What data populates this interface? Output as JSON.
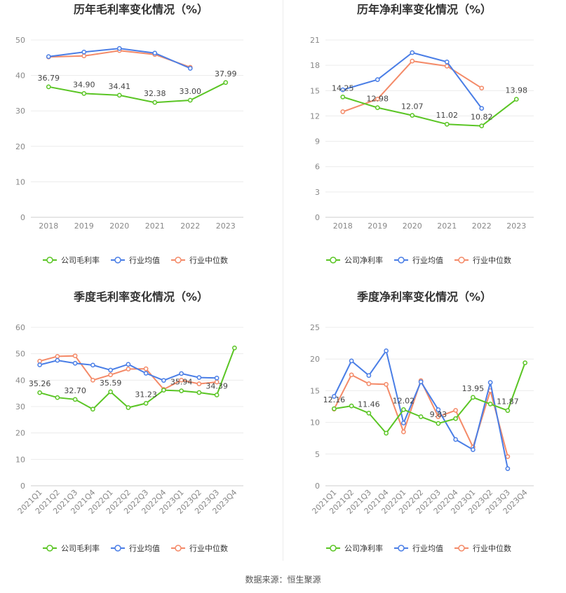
{
  "footer": "数据来源：恒生聚源",
  "chart_data": [
    {
      "type": "line",
      "title": "历年毛利率变化情况（%）",
      "categories": [
        "2018",
        "2019",
        "2020",
        "2021",
        "2022",
        "2023"
      ],
      "ylim": [
        0,
        50
      ],
      "yticks": [
        "0",
        "10",
        "20",
        "30",
        "40",
        "50"
      ],
      "grid": true,
      "legend_position": "bottom",
      "series": [
        {
          "name": "公司毛利率",
          "color": "#5ac524",
          "values": [
            36.79,
            34.9,
            34.41,
            32.38,
            33.0,
            37.99
          ],
          "labels": [
            "36.79",
            "34.90",
            "34.41",
            "32.38",
            "33.00",
            "37.99"
          ]
        },
        {
          "name": "行业均值",
          "color": "#4a7ee6",
          "values": [
            45.3,
            46.6,
            47.6,
            46.3,
            42.0,
            null
          ]
        },
        {
          "name": "行业中位数",
          "color": "#f48a68",
          "values": [
            45.2,
            45.5,
            47.0,
            45.9,
            42.3,
            null
          ]
        }
      ]
    },
    {
      "type": "line",
      "title": "历年净利率变化情况（%）",
      "categories": [
        "2018",
        "2019",
        "2020",
        "2021",
        "2022",
        "2023"
      ],
      "ylim": [
        0,
        21
      ],
      "yticks": [
        "0",
        "3",
        "6",
        "9",
        "12",
        "15",
        "18",
        "21"
      ],
      "grid": true,
      "legend_position": "bottom",
      "series": [
        {
          "name": "公司净利率",
          "color": "#5ac524",
          "values": [
            14.25,
            12.98,
            12.07,
            11.02,
            10.82,
            13.98
          ],
          "labels": [
            "14.25",
            "12.98",
            "12.07",
            "11.02",
            "10.82",
            "13.98"
          ]
        },
        {
          "name": "行业均值",
          "color": "#4a7ee6",
          "values": [
            15.1,
            16.3,
            19.5,
            18.4,
            12.9,
            null
          ]
        },
        {
          "name": "行业中位数",
          "color": "#f48a68",
          "values": [
            12.5,
            14.0,
            18.5,
            17.9,
            15.3,
            null
          ]
        }
      ]
    },
    {
      "type": "line",
      "title": "季度毛利率变化情况（%）",
      "categories": [
        "2021Q1",
        "2021Q2",
        "2021Q3",
        "2021Q4",
        "2022Q1",
        "2022Q2",
        "2022Q3",
        "2022Q4",
        "2023Q1",
        "2023Q2",
        "2023Q3",
        "2023Q4"
      ],
      "ylim": [
        0,
        60
      ],
      "yticks": [
        "0",
        "10",
        "20",
        "30",
        "40",
        "50",
        "60"
      ],
      "grid": true,
      "legend_position": "bottom",
      "series": [
        {
          "name": "公司毛利率",
          "color": "#5ac524",
          "values": [
            35.26,
            33.4,
            32.7,
            29.0,
            35.59,
            29.6,
            31.23,
            36.2,
            35.94,
            35.3,
            34.39,
            52.2
          ],
          "labels": [
            "35.26",
            null,
            "32.70",
            null,
            "35.59",
            null,
            "31.23",
            null,
            "35.94",
            null,
            "34.39",
            null
          ]
        },
        {
          "name": "行业均值",
          "color": "#4a7ee6",
          "values": [
            45.8,
            47.5,
            46.4,
            45.7,
            43.8,
            46.0,
            42.6,
            39.9,
            42.5,
            41.0,
            40.8,
            null
          ]
        },
        {
          "name": "行业中位数",
          "color": "#f48a68",
          "values": [
            47.2,
            49.0,
            49.2,
            40.0,
            42.0,
            44.2,
            44.3,
            36.5,
            40.0,
            38.6,
            39.3,
            null
          ]
        }
      ]
    },
    {
      "type": "line",
      "title": "季度净利率变化情况（%）",
      "categories": [
        "2021Q1",
        "2021Q2",
        "2021Q3",
        "2021Q4",
        "2022Q1",
        "2022Q2",
        "2022Q3",
        "2022Q4",
        "2023Q1",
        "2023Q2",
        "2023Q3",
        "2023Q4"
      ],
      "ylim": [
        0,
        25
      ],
      "yticks": [
        "0",
        "5",
        "10",
        "15",
        "20",
        "25"
      ],
      "grid": true,
      "legend_position": "bottom",
      "series": [
        {
          "name": "公司净利率",
          "color": "#5ac524",
          "values": [
            12.16,
            12.6,
            11.46,
            8.3,
            12.02,
            10.9,
            9.83,
            10.6,
            13.95,
            12.9,
            11.87,
            19.4
          ],
          "labels": [
            "12.16",
            null,
            "11.46",
            null,
            "12.02",
            null,
            "9.83",
            null,
            "13.95",
            null,
            "11.87",
            null
          ]
        },
        {
          "name": "行业均值",
          "color": "#4a7ee6",
          "values": [
            14.1,
            19.7,
            17.4,
            21.3,
            9.9,
            16.4,
            12.0,
            7.3,
            5.7,
            16.3,
            2.7,
            null
          ]
        },
        {
          "name": "行业中位数",
          "color": "#f48a68",
          "values": [
            12.1,
            17.5,
            16.1,
            16.0,
            8.5,
            16.6,
            10.9,
            11.9,
            6.1,
            15.0,
            4.6,
            null
          ]
        }
      ]
    }
  ]
}
